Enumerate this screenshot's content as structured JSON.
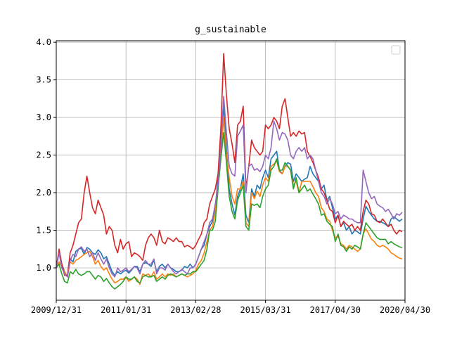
{
  "chart_data": {
    "type": "line",
    "title": "g_sustainable",
    "xlabel": "",
    "ylabel": "",
    "x_tick_labels": [
      "2009/12/31",
      "2011/01/31",
      "2013/02/28",
      "2015/03/31",
      "2017/04/30",
      "2020/04/30"
    ],
    "y_tick_labels": [
      "1.0",
      "1.5",
      "2.0",
      "2.5",
      "3.0",
      "3.5",
      "4.0"
    ],
    "y_ticks": [
      1.0,
      1.5,
      2.0,
      2.5,
      3.0,
      3.5,
      4.0
    ],
    "ylim": [
      0.57,
      4.02
    ],
    "x_index_range": [
      0,
      125
    ],
    "grid": true,
    "legend": "top-right (empty)",
    "series": [
      {
        "color": "#1f77b4",
        "values": [
          1.0,
          1.22,
          1.05,
          0.95,
          0.88,
          1.12,
          1.08,
          1.22,
          1.25,
          1.26,
          1.18,
          1.27,
          1.25,
          1.2,
          1.18,
          1.24,
          1.2,
          1.12,
          1.15,
          1.05,
          0.95,
          0.9,
          0.95,
          0.92,
          0.95,
          0.97,
          0.93,
          0.97,
          1.02,
          1.02,
          0.95,
          1.05,
          1.07,
          1.05,
          1.02,
          1.1,
          0.95,
          1.02,
          1.05,
          1.0,
          1.05,
          1.0,
          0.98,
          0.95,
          0.95,
          0.97,
          1.02,
          1.0,
          1.05,
          1.0,
          1.05,
          1.15,
          1.25,
          1.3,
          1.45,
          1.55,
          1.62,
          1.8,
          2.2,
          2.65,
          3.15,
          2.6,
          2.05,
          1.85,
          1.7,
          1.95,
          2.05,
          2.25,
          1.7,
          1.6,
          2.05,
          1.95,
          2.1,
          2.05,
          2.2,
          2.3,
          2.2,
          2.45,
          2.5,
          2.55,
          2.3,
          2.25,
          2.35,
          2.4,
          2.38,
          2.15,
          2.25,
          2.2,
          2.15,
          2.18,
          2.2,
          2.35,
          2.25,
          2.2,
          2.15,
          2.05,
          2.1,
          1.9,
          1.95,
          1.8,
          1.65,
          1.7,
          1.55,
          1.6,
          1.5,
          1.55,
          1.45,
          1.5,
          1.48,
          1.45,
          1.65,
          1.82,
          1.75,
          1.7,
          1.65,
          1.62,
          1.62,
          1.6,
          1.58,
          1.55,
          1.65,
          1.68,
          1.65,
          1.62,
          1.65
        ]
      },
      {
        "color": "#ff7f0e",
        "values": [
          1.0,
          1.08,
          1.02,
          0.95,
          0.88,
          1.08,
          1.05,
          1.1,
          1.12,
          1.15,
          1.18,
          1.2,
          1.22,
          1.15,
          1.05,
          1.1,
          1.02,
          0.97,
          1.0,
          0.92,
          0.85,
          0.8,
          0.82,
          0.85,
          0.85,
          0.88,
          0.82,
          0.85,
          0.88,
          0.85,
          0.78,
          0.92,
          0.9,
          0.92,
          0.88,
          0.95,
          0.85,
          0.88,
          0.92,
          0.88,
          0.92,
          0.9,
          0.92,
          0.88,
          0.9,
          0.92,
          0.9,
          0.88,
          0.9,
          0.92,
          0.97,
          1.05,
          1.1,
          1.2,
          1.35,
          1.5,
          1.55,
          1.75,
          2.1,
          2.5,
          3.0,
          2.5,
          2.2,
          1.95,
          1.85,
          2.05,
          2.05,
          2.15,
          1.6,
          1.55,
          2.0,
          1.92,
          2.02,
          1.95,
          2.1,
          2.2,
          2.15,
          2.35,
          2.38,
          2.42,
          2.28,
          2.25,
          2.35,
          2.35,
          2.3,
          2.1,
          2.15,
          2.0,
          2.15,
          2.15,
          2.15,
          2.15,
          2.08,
          2.0,
          1.95,
          1.8,
          1.75,
          1.65,
          1.62,
          1.5,
          1.4,
          1.42,
          1.32,
          1.3,
          1.25,
          1.3,
          1.28,
          1.25,
          1.22,
          1.25,
          1.45,
          1.52,
          1.45,
          1.38,
          1.35,
          1.3,
          1.28,
          1.3,
          1.28,
          1.25,
          1.2,
          1.18,
          1.15,
          1.13,
          1.12
        ]
      },
      {
        "color": "#2ca02c",
        "values": [
          1.0,
          1.05,
          0.92,
          0.82,
          0.8,
          0.95,
          0.92,
          0.98,
          0.92,
          0.9,
          0.92,
          0.95,
          0.95,
          0.9,
          0.85,
          0.9,
          0.88,
          0.82,
          0.86,
          0.8,
          0.75,
          0.72,
          0.75,
          0.78,
          0.82,
          0.88,
          0.85,
          0.85,
          0.88,
          0.82,
          0.8,
          0.88,
          0.9,
          0.88,
          0.88,
          0.9,
          0.82,
          0.85,
          0.88,
          0.85,
          0.9,
          0.92,
          0.9,
          0.88,
          0.9,
          0.92,
          0.9,
          0.92,
          0.92,
          0.95,
          0.95,
          1.0,
          1.05,
          1.1,
          1.25,
          1.5,
          1.5,
          1.62,
          2.05,
          2.45,
          2.8,
          2.4,
          1.95,
          1.75,
          1.65,
          1.9,
          2.0,
          2.1,
          1.55,
          1.5,
          1.85,
          1.83,
          1.85,
          1.8,
          1.95,
          2.05,
          2.1,
          2.3,
          2.35,
          2.45,
          2.3,
          2.3,
          2.4,
          2.35,
          2.3,
          2.05,
          2.2,
          2.0,
          2.05,
          2.1,
          2.02,
          2.05,
          1.98,
          1.92,
          1.85,
          1.7,
          1.72,
          1.62,
          1.58,
          1.55,
          1.35,
          1.45,
          1.3,
          1.28,
          1.22,
          1.28,
          1.25,
          1.3,
          1.28,
          1.25,
          1.45,
          1.6,
          1.55,
          1.5,
          1.45,
          1.4,
          1.38,
          1.38,
          1.38,
          1.32,
          1.35,
          1.32,
          1.3,
          1.28,
          1.27
        ]
      },
      {
        "color": "#d62728",
        "values": [
          1.0,
          1.25,
          1.05,
          0.9,
          0.9,
          1.2,
          1.3,
          1.45,
          1.6,
          1.65,
          2.0,
          2.22,
          2.0,
          1.8,
          1.72,
          1.9,
          1.8,
          1.7,
          1.45,
          1.55,
          1.5,
          1.3,
          1.2,
          1.38,
          1.25,
          1.32,
          1.35,
          1.15,
          1.2,
          1.18,
          1.15,
          1.1,
          1.3,
          1.4,
          1.45,
          1.4,
          1.3,
          1.5,
          1.35,
          1.32,
          1.4,
          1.38,
          1.35,
          1.4,
          1.35,
          1.35,
          1.28,
          1.3,
          1.28,
          1.25,
          1.3,
          1.38,
          1.45,
          1.6,
          1.65,
          1.85,
          1.95,
          2.05,
          2.25,
          2.85,
          3.85,
          3.3,
          2.85,
          2.65,
          2.4,
          2.9,
          2.95,
          3.15,
          2.05,
          2.35,
          2.7,
          2.6,
          2.55,
          2.5,
          2.55,
          2.9,
          2.85,
          2.9,
          3.0,
          2.95,
          2.85,
          3.15,
          3.25,
          3.0,
          2.75,
          2.8,
          2.75,
          2.82,
          2.78,
          2.8,
          2.55,
          2.48,
          2.4,
          2.3,
          2.2,
          2.05,
          2.0,
          1.9,
          1.78,
          1.75,
          1.6,
          1.7,
          1.55,
          1.62,
          1.58,
          1.55,
          1.58,
          1.5,
          1.55,
          1.5,
          1.75,
          1.9,
          1.85,
          1.72,
          1.7,
          1.62,
          1.6,
          1.65,
          1.6,
          1.55,
          1.58,
          1.5,
          1.45,
          1.5,
          1.48
        ]
      },
      {
        "color": "#9467bd",
        "values": [
          1.0,
          1.2,
          1.0,
          0.92,
          0.88,
          1.1,
          1.18,
          1.15,
          1.25,
          1.28,
          1.22,
          1.25,
          1.15,
          1.2,
          1.1,
          1.2,
          1.12,
          1.05,
          1.12,
          1.0,
          0.92,
          0.88,
          1.0,
          0.95,
          0.97,
          1.0,
          0.95,
          0.98,
          1.02,
          1.0,
          0.92,
          1.05,
          1.1,
          1.05,
          1.05,
          1.12,
          0.92,
          1.0,
          1.0,
          0.97,
          1.05,
          1.0,
          0.95,
          0.92,
          0.95,
          0.98,
          0.95,
          0.92,
          1.0,
          1.0,
          1.05,
          1.15,
          1.25,
          1.35,
          1.45,
          1.6,
          1.65,
          1.85,
          2.1,
          2.6,
          3.28,
          2.8,
          2.35,
          2.25,
          2.22,
          2.75,
          2.82,
          2.9,
          2.0,
          2.35,
          2.38,
          2.3,
          2.32,
          2.28,
          2.35,
          2.5,
          2.45,
          2.6,
          2.95,
          2.85,
          2.7,
          2.8,
          2.78,
          2.7,
          2.5,
          2.45,
          2.55,
          2.6,
          2.55,
          2.6,
          2.45,
          2.5,
          2.45,
          2.3,
          2.15,
          2.0,
          1.95,
          1.85,
          1.92,
          1.85,
          1.72,
          1.75,
          1.65,
          1.7,
          1.68,
          1.65,
          1.65,
          1.62,
          1.6,
          1.6,
          2.3,
          2.15,
          2.0,
          1.92,
          1.95,
          1.85,
          1.82,
          1.8,
          1.75,
          1.78,
          1.72,
          1.65,
          1.72,
          1.7,
          1.74
        ]
      }
    ]
  }
}
